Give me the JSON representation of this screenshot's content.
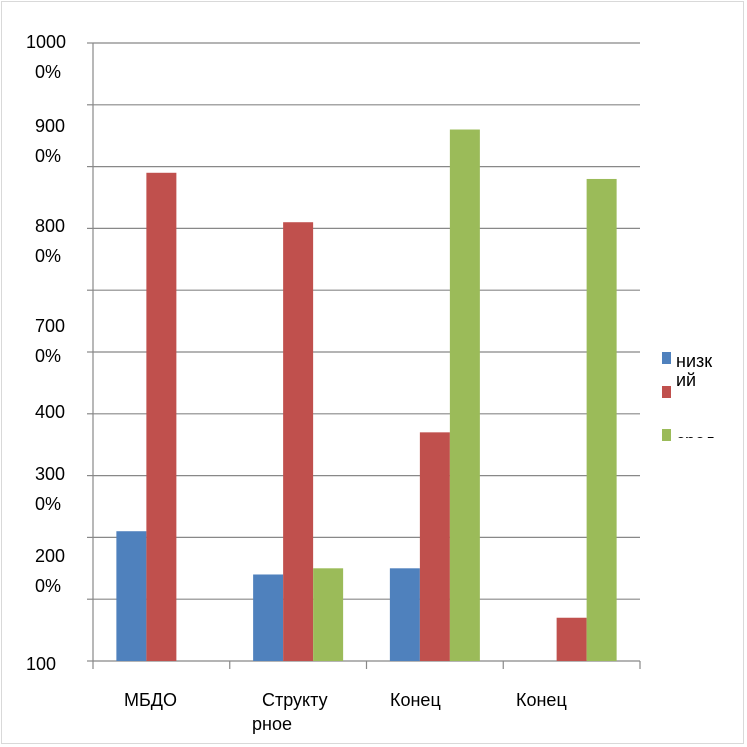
{
  "chart_data": {
    "type": "bar",
    "title": "",
    "xlabel": "",
    "ylabel": "",
    "categories": [
      [
        "МБДО"
      ],
      [
        "Структу",
        "рное"
      ],
      [
        "Конец"
      ],
      [
        "Конец"
      ]
    ],
    "y_tick_labels": [
      [
        "100"
      ],
      [
        "200",
        "0%"
      ],
      [
        "300",
        "0%"
      ],
      [
        "400"
      ],
      [
        "700",
        "0%"
      ],
      [
        "800",
        "0%"
      ],
      [
        "900",
        "0%"
      ],
      [
        "1000",
        "0%"
      ]
    ],
    "ylim": [
      0,
      1000
    ],
    "gridlines": true,
    "legend_position": "right",
    "legend_text_lines": [
      "низк",
      "ий",
      "сред"
    ],
    "series": [
      {
        "color": "#4f81bd",
        "values": [
          210,
          140,
          150,
          0
        ]
      },
      {
        "color": "#c0504d",
        "values": [
          790,
          710,
          370,
          70
        ]
      },
      {
        "color": "#9bbb59",
        "values": [
          0,
          150,
          860,
          780
        ]
      }
    ]
  }
}
